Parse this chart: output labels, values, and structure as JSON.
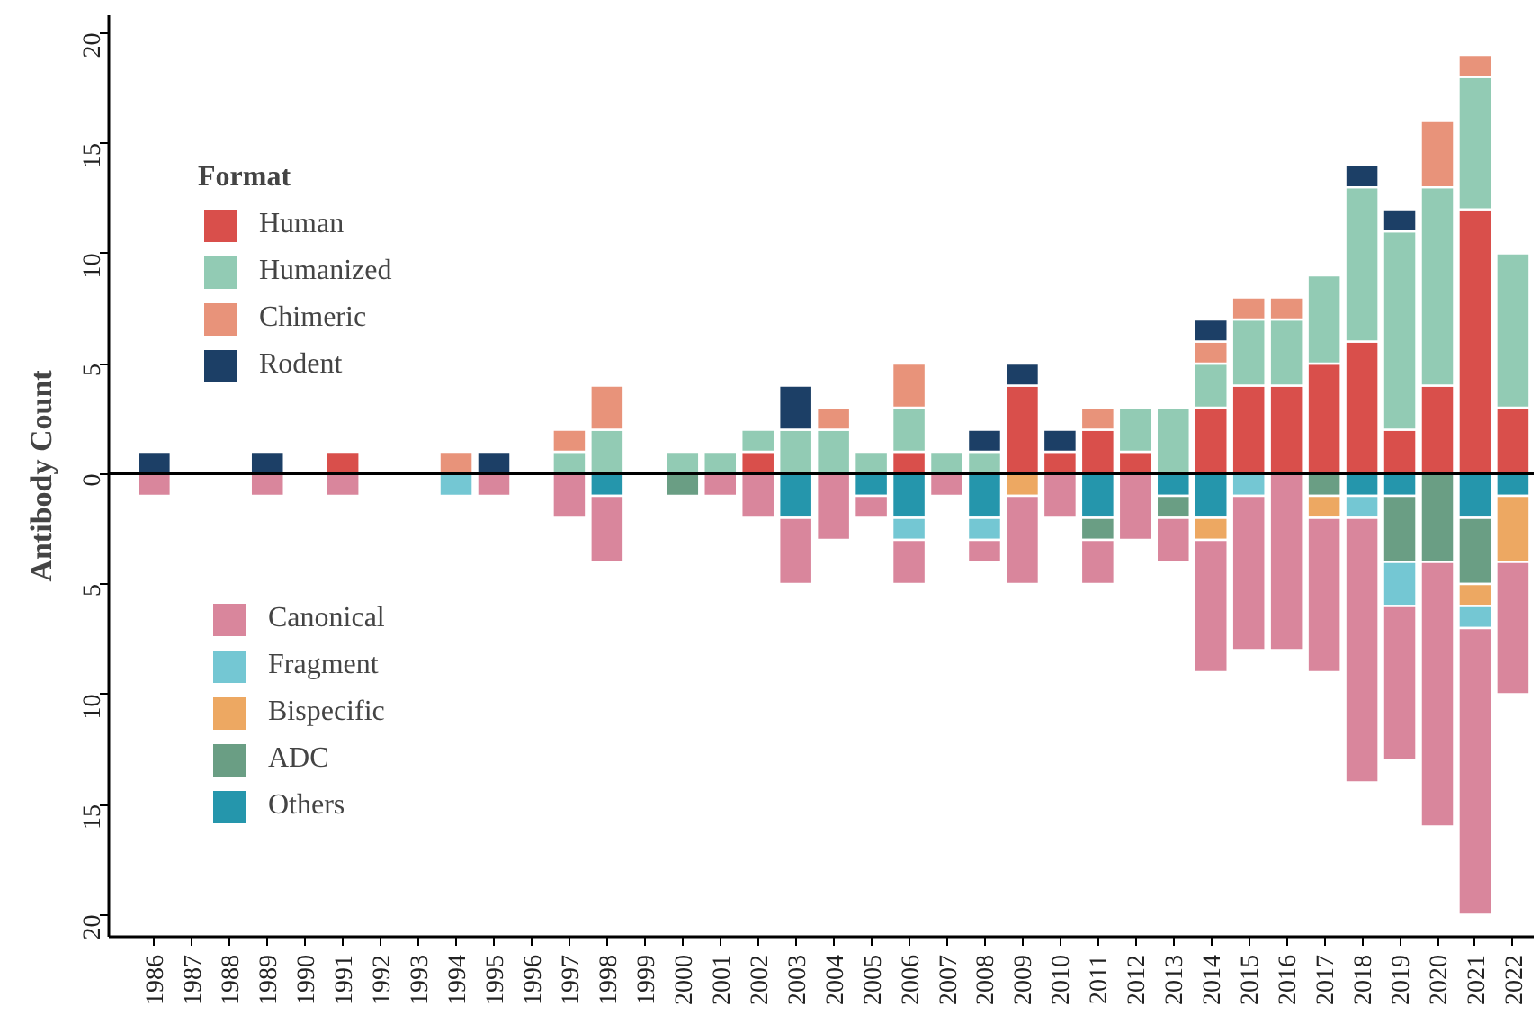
{
  "chart_data": {
    "type": "bar",
    "stacked": true,
    "ylabel": "Antibody Count",
    "legend_title": "Format",
    "legend": "left",
    "categories": [
      "1986",
      "1987",
      "1988",
      "1989",
      "1990",
      "1991",
      "1992",
      "1993",
      "1994",
      "1995",
      "1996",
      "1997",
      "1998",
      "1999",
      "2000",
      "2001",
      "2002",
      "2003",
      "2004",
      "2005",
      "2006",
      "2007",
      "2008",
      "2009",
      "2010",
      "2011",
      "2012",
      "2013",
      "2014",
      "2015",
      "2016",
      "2017",
      "2018",
      "2019",
      "2020",
      "2021",
      "2022"
    ],
    "ylim": [
      -21,
      20.8
    ],
    "yticks": [
      {
        "value": -20,
        "label": "20"
      },
      {
        "value": -15,
        "label": "15"
      },
      {
        "value": -10,
        "label": "10"
      },
      {
        "value": -5,
        "label": "5"
      },
      0,
      5,
      10,
      15,
      20
    ],
    "ref_lines": [
      {
        "axis": "y",
        "value": 0,
        "color": "#000000"
      }
    ],
    "series": [
      {
        "name": "Human",
        "color": "#d94f4b",
        "values": [
          0,
          0,
          0,
          0,
          0,
          1,
          0,
          0,
          0,
          0,
          0,
          0,
          0,
          0,
          0,
          0,
          1,
          0,
          0,
          0,
          1,
          0,
          0,
          4,
          1,
          2,
          1,
          0,
          3,
          4,
          4,
          5,
          6,
          2,
          4,
          12,
          3
        ]
      },
      {
        "name": "Humanized",
        "color": "#92cbb4",
        "values": [
          0,
          0,
          0,
          0,
          0,
          0,
          0,
          0,
          0,
          0,
          0,
          1,
          2,
          0,
          1,
          1,
          1,
          2,
          2,
          1,
          2,
          1,
          1,
          0,
          0,
          0,
          2,
          3,
          2,
          3,
          3,
          4,
          7,
          9,
          9,
          6,
          7
        ]
      },
      {
        "name": "Chimeric",
        "color": "#e8937a",
        "values": [
          0,
          0,
          0,
          0,
          0,
          0,
          0,
          0,
          1,
          0,
          0,
          1,
          2,
          0,
          0,
          0,
          0,
          0,
          1,
          0,
          2,
          0,
          0,
          0,
          0,
          1,
          0,
          0,
          1,
          1,
          1,
          0,
          0,
          0,
          3,
          1,
          0
        ]
      },
      {
        "name": "Rodent",
        "color": "#1c3f66",
        "values": [
          1,
          0,
          0,
          1,
          0,
          0,
          0,
          0,
          0,
          1,
          0,
          0,
          0,
          0,
          0,
          0,
          0,
          2,
          0,
          0,
          0,
          0,
          1,
          1,
          1,
          0,
          0,
          0,
          1,
          0,
          0,
          0,
          1,
          1,
          0,
          0,
          0
        ]
      },
      {
        "name": "Others",
        "color": "#2596ac",
        "values": [
          0,
          0,
          0,
          0,
          0,
          0,
          0,
          0,
          0,
          0,
          0,
          0,
          -1,
          0,
          0,
          0,
          0,
          -2,
          0,
          -1,
          -2,
          0,
          -2,
          0,
          0,
          -2,
          0,
          -1,
          -2,
          0,
          0,
          0,
          -1,
          -1,
          0,
          -2,
          -1
        ]
      },
      {
        "name": "ADC",
        "color": "#6a9e84",
        "values": [
          0,
          0,
          0,
          0,
          0,
          0,
          0,
          0,
          0,
          0,
          0,
          0,
          0,
          0,
          -1,
          0,
          0,
          0,
          0,
          0,
          0,
          0,
          0,
          0,
          0,
          -1,
          0,
          -1,
          0,
          0,
          0,
          -1,
          0,
          -3,
          -4,
          -3,
          0
        ]
      },
      {
        "name": "Bispecific",
        "color": "#eda862",
        "values": [
          0,
          0,
          0,
          0,
          0,
          0,
          0,
          0,
          0,
          0,
          0,
          0,
          0,
          0,
          0,
          0,
          0,
          0,
          0,
          0,
          0,
          0,
          0,
          -1,
          0,
          0,
          0,
          0,
          -1,
          0,
          0,
          -1,
          0,
          0,
          0,
          -1,
          -3
        ]
      },
      {
        "name": "Fragment",
        "color": "#74c7d3",
        "values": [
          0,
          0,
          0,
          0,
          0,
          0,
          0,
          0,
          -1,
          0,
          0,
          0,
          0,
          0,
          0,
          0,
          0,
          0,
          0,
          0,
          -1,
          0,
          -1,
          0,
          0,
          0,
          0,
          0,
          0,
          -1,
          0,
          0,
          -1,
          -2,
          0,
          -1,
          0
        ]
      },
      {
        "name": "Canonical",
        "color": "#d9869c",
        "values": [
          -1,
          0,
          0,
          -1,
          0,
          -1,
          0,
          0,
          0,
          -1,
          0,
          -2,
          -3,
          0,
          0,
          -1,
          -2,
          -3,
          -3,
          -1,
          -2,
          -1,
          -1,
          -4,
          -2,
          -2,
          -3,
          -2,
          -6,
          -7,
          -8,
          -7,
          -12,
          -7,
          -12,
          -13,
          -6
        ]
      }
    ]
  }
}
